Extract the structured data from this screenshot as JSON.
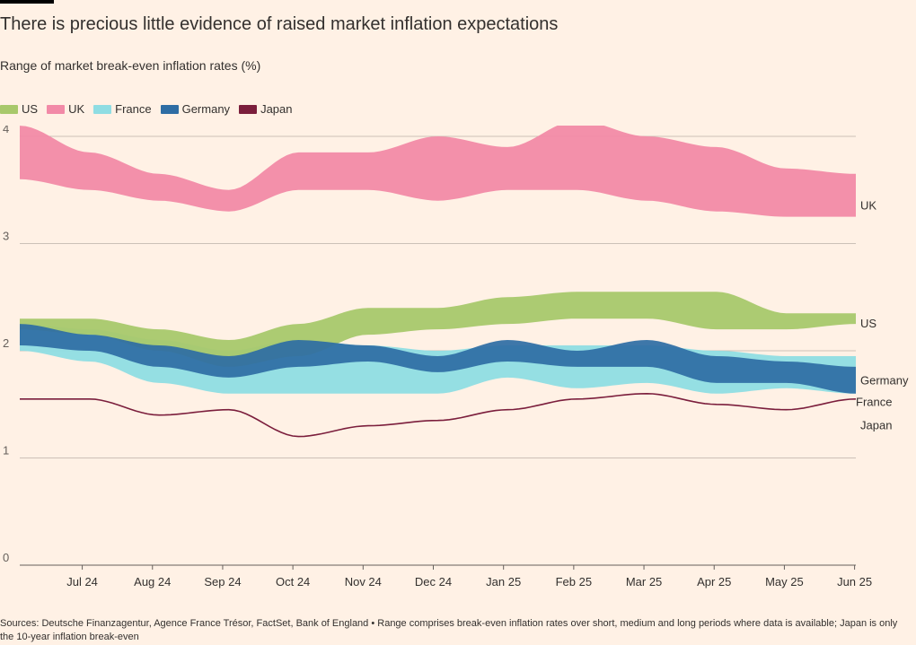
{
  "header": {
    "title": "There is precious little evidence of raised market inflation expectations",
    "subtitle": "Range of market break-even inflation rates (%)"
  },
  "footer": {
    "source": "Sources: Deutsche Finanzagentur, Agence France Trésor, FactSet, Bank of England • Range comprises break-even inflation rates over short, medium and long periods where data is available; Japan is only the 10-year inflation break-even"
  },
  "chart_data": {
    "type": "area",
    "title": "There is precious little evidence of raised market inflation expectations",
    "subtitle": "Range of market break-even inflation rates (%)",
    "xlabel": "",
    "ylabel": "",
    "ylim": [
      0,
      4
    ],
    "yticks": [
      0,
      1,
      2,
      3,
      4
    ],
    "xticks": [
      "Jul 24",
      "Aug 24",
      "Sep 24",
      "Oct 24",
      "Nov 24",
      "Dec 24",
      "Jan 25",
      "Feb 25",
      "Mar 25",
      "Apr 25",
      "May 25",
      "Jun 25"
    ],
    "x": [
      "Jun 24",
      "Jul 24",
      "Aug 24",
      "Sep 24",
      "Oct 24",
      "Nov 24",
      "Dec 24",
      "Jan 25",
      "Feb 25",
      "Mar 25",
      "Apr 25",
      "May 25",
      "Jun 25"
    ],
    "grid": true,
    "legend_position": "top-left",
    "series": [
      {
        "name": "US",
        "color": "#a8c86b",
        "type": "range",
        "low": [
          2.2,
          2.15,
          2.0,
          1.85,
          1.95,
          2.15,
          2.2,
          2.25,
          2.3,
          2.3,
          2.2,
          2.2,
          2.25
        ],
        "high": [
          2.3,
          2.3,
          2.2,
          2.1,
          2.25,
          2.4,
          2.4,
          2.5,
          2.55,
          2.55,
          2.55,
          2.35,
          2.35
        ]
      },
      {
        "name": "UK",
        "color": "#f28aa7",
        "type": "range",
        "low": [
          3.6,
          3.5,
          3.4,
          3.3,
          3.5,
          3.5,
          3.4,
          3.5,
          3.5,
          3.4,
          3.3,
          3.25,
          3.25
        ],
        "high": [
          4.1,
          3.85,
          3.65,
          3.5,
          3.85,
          3.85,
          4.0,
          3.9,
          4.15,
          4.0,
          3.9,
          3.7,
          3.65
        ]
      },
      {
        "name": "France",
        "color": "#8fdde3",
        "type": "range",
        "low": [
          2.0,
          1.9,
          1.7,
          1.6,
          1.6,
          1.6,
          1.6,
          1.75,
          1.65,
          1.7,
          1.6,
          1.65,
          1.6
        ],
        "high": [
          2.25,
          2.2,
          2.1,
          2.0,
          2.1,
          2.05,
          2.0,
          2.05,
          2.05,
          2.05,
          2.0,
          1.95,
          1.95
        ]
      },
      {
        "name": "Germany",
        "color": "#2e6da4",
        "type": "range",
        "low": [
          2.05,
          2.0,
          1.85,
          1.75,
          1.85,
          1.9,
          1.8,
          1.9,
          1.85,
          1.85,
          1.7,
          1.7,
          1.6
        ],
        "high": [
          2.25,
          2.15,
          2.05,
          1.95,
          2.1,
          2.05,
          1.95,
          2.1,
          2.0,
          2.1,
          1.95,
          1.9,
          1.85
        ]
      },
      {
        "name": "Japan",
        "color": "#7b1e3c",
        "type": "line",
        "values": [
          1.55,
          1.55,
          1.4,
          1.45,
          1.2,
          1.3,
          1.35,
          1.45,
          1.55,
          1.6,
          1.5,
          1.45,
          1.55
        ]
      }
    ],
    "end_labels": [
      "UK",
      "US",
      "Germany",
      "France",
      "Japan"
    ]
  }
}
